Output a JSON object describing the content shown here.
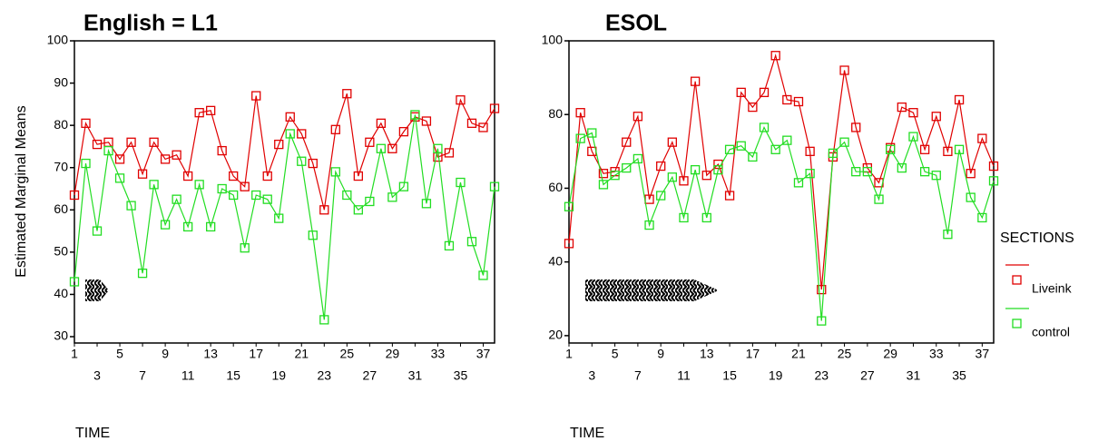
{
  "chart_data": [
    {
      "type": "line",
      "title": "English = L1",
      "ylabel": "Estimated Marginal Means",
      "xlabel": "TIME",
      "categories": [
        1,
        null,
        3,
        null,
        5,
        null,
        7,
        null,
        9,
        null,
        11,
        null,
        13,
        null,
        15,
        null,
        17,
        null,
        19,
        null,
        21,
        null,
        23,
        null,
        25,
        null,
        27,
        null,
        29,
        null,
        31,
        null,
        33,
        null,
        35,
        null,
        37,
        null
      ],
      "ylim": [
        28.5,
        100
      ],
      "yticks": [
        30,
        40,
        50,
        60,
        70,
        80,
        90,
        100
      ],
      "series": [
        {
          "name": "Liveink",
          "color": "#e00000",
          "values": [
            63.5,
            80.5,
            75.5,
            76,
            72,
            76,
            68.5,
            76,
            72,
            73,
            68,
            83,
            83.5,
            74,
            68,
            65.5,
            87,
            68,
            75.5,
            82,
            78,
            71,
            60,
            79,
            87.5,
            68,
            76,
            80.5,
            74.5,
            78.5,
            82,
            81,
            72.5,
            73.5,
            86,
            80.5,
            79.5,
            84
          ]
        },
        {
          "name": "control",
          "color": "#22dd22",
          "values": [
            43,
            71,
            55,
            74,
            67.5,
            61,
            45,
            66,
            56.5,
            62.5,
            56,
            66,
            56,
            65,
            63.5,
            51,
            63.5,
            62.5,
            58,
            78,
            71.5,
            54,
            34,
            69,
            63.5,
            60,
            62,
            74.5,
            63,
            65.5,
            82.5,
            61.5,
            74.5,
            51.5,
            66.5,
            52.5,
            44.5,
            65.5
          ]
        }
      ]
    },
    {
      "type": "line",
      "title": "ESOL",
      "xlabel": "TIME",
      "legend_title": "SECTIONS",
      "legend": "right",
      "categories": [
        1,
        null,
        3,
        null,
        5,
        null,
        7,
        null,
        9,
        null,
        11,
        null,
        13,
        null,
        15,
        null,
        17,
        null,
        19,
        null,
        21,
        null,
        23,
        null,
        25,
        null,
        27,
        null,
        29,
        null,
        31,
        null,
        33,
        null,
        35,
        null,
        37,
        null
      ],
      "ylim": [
        18,
        100
      ],
      "yticks": [
        20,
        40,
        60,
        80,
        100
      ],
      "series": [
        {
          "name": "Liveink",
          "color": "#e00000",
          "values": [
            45,
            80.5,
            70,
            64,
            64.5,
            72.5,
            79.5,
            57,
            66,
            72.5,
            62,
            89,
            63.5,
            66.5,
            58,
            86,
            82,
            86,
            96,
            84,
            83.5,
            70,
            32.5,
            68.5,
            92,
            76.5,
            65.5,
            61.5,
            71,
            82,
            80.5,
            70.5,
            79.5,
            70,
            84,
            64,
            73.5,
            66
          ]
        },
        {
          "name": "control",
          "color": "#22dd22",
          "values": [
            55,
            73.5,
            75,
            61,
            63.5,
            65.5,
            68,
            50,
            58,
            63,
            52,
            65,
            52,
            65,
            70.5,
            71.5,
            68.5,
            76.5,
            70.5,
            73,
            61.5,
            64,
            24,
            69.5,
            72.5,
            64.5,
            64.5,
            57,
            70.5,
            65.5,
            74,
            64.5,
            63.5,
            47.5,
            70.5,
            57.5,
            52,
            62
          ]
        }
      ]
    }
  ]
}
